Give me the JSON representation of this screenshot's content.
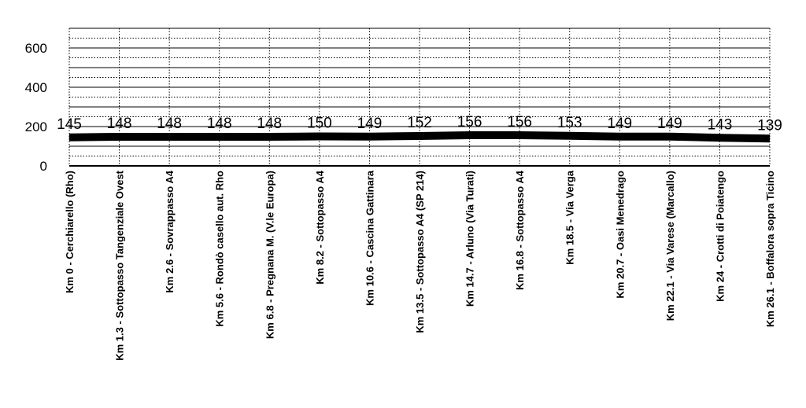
{
  "chart_data": {
    "type": "line",
    "title": "",
    "xlabel": "",
    "ylabel": "",
    "ylim": [
      0,
      700
    ],
    "yticks": [
      0,
      200,
      400,
      600
    ],
    "grid": true,
    "line_color": "#000000",
    "categories": [
      "Km 0 - Cerchiarello (Rho)",
      "Km 1.3 - Sottopasso Tangenziale Ovest",
      "Km 2.6 - Sovrappasso A4",
      "Km 5.6 - Rondò casello aut. Rho",
      "Km 6.8 - Pregnana M. (V.le Europa)",
      "Km 8.2 - Sottopasso A4",
      "Km 10.6 - Cascina Gattinara",
      "Km 13.5 - Sottopasso A4 (SP 214)",
      "Km 14.7 - Arluno (Via Turati)",
      "Km 16.8 - Sottopasso A4",
      "Km 18.5 - Via Verga",
      "Km 20.7 - Oasi Menedrago",
      "Km 22.1 - Via Varese (Marcallo)",
      "Km 24 - Crotti di Poiatengo",
      "Km 26.1 - Boffalora sopra Ticino"
    ],
    "values": [
      145,
      148,
      148,
      148,
      148,
      150,
      149,
      152,
      156,
      156,
      153,
      149,
      149,
      143,
      139
    ]
  }
}
